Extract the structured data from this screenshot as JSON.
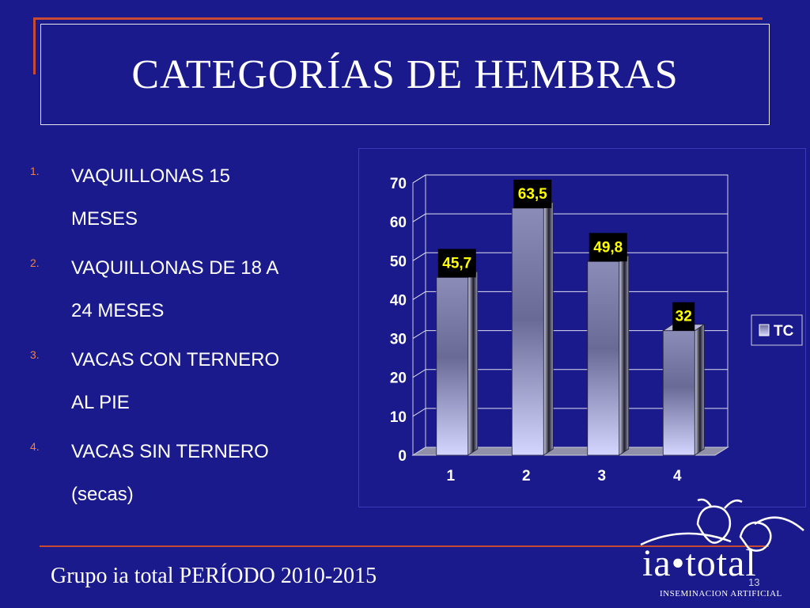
{
  "slide": {
    "title": "CATEGORÍAS DE HEMBRAS",
    "footer": "Grupo ia total PERÍODO 2010-2015",
    "slide_number": "13"
  },
  "list": {
    "items": [
      {
        "num": "1.",
        "lines": [
          "VAQUILLONAS 15",
          "MESES"
        ]
      },
      {
        "num": "2.",
        "lines": [
          "VAQUILLONAS DE 18 A",
          "24 MESES"
        ]
      },
      {
        "num": "3.",
        "lines": [
          "VACAS CON TERNERO",
          "AL PIE"
        ]
      },
      {
        "num": "4.",
        "lines": [
          "VACAS SIN TERNERO",
          "(secas)"
        ]
      }
    ]
  },
  "logo": {
    "brand": "ia•total",
    "tagline": "INSEMINACION ARTIFICIAL"
  },
  "colors": {
    "background": "#1a1a8c",
    "accent_line": "#c84a32",
    "bar_light": "#c9cbff",
    "bar_dark": "#2a2a3a",
    "label_bg": "#000000",
    "label_text": "#ffff00"
  },
  "chart_data": {
    "type": "bar",
    "categories": [
      "1",
      "2",
      "3",
      "4"
    ],
    "series": [
      {
        "name": "TC",
        "values": [
          45.7,
          63.5,
          49.8,
          32
        ]
      }
    ],
    "data_labels": [
      "45,7",
      "63,5",
      "49,8",
      "32"
    ],
    "ylim": [
      0,
      70
    ],
    "yticks": [
      0,
      10,
      20,
      30,
      40,
      50,
      60,
      70
    ],
    "grid": true,
    "legend": "right",
    "style": "3d"
  }
}
